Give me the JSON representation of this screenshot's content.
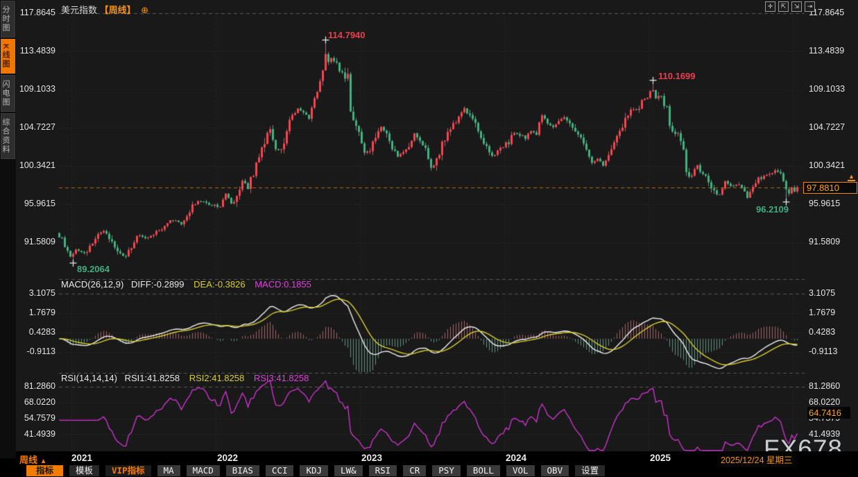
{
  "header": {
    "symbol": "美元指数",
    "period_tag": "【周线】",
    "add_icon": "⊕"
  },
  "sidebar": {
    "items": [
      {
        "label": "分时图",
        "active": false
      },
      {
        "label": "K线图",
        "active": true
      },
      {
        "label": "闪电图",
        "active": false
      },
      {
        "label": "综合资料",
        "active": false
      }
    ]
  },
  "window_controls": [
    {
      "name": "crosshair-tool-icon",
      "glyph": "✛"
    },
    {
      "name": "scale-y-axis-icon",
      "glyph": "⇱"
    },
    {
      "name": "scale-x-axis-icon",
      "glyph": "⇲"
    },
    {
      "name": "shift-right-icon",
      "glyph": "⇥"
    }
  ],
  "main_panel": {
    "y_labels": [
      "117.8645",
      "113.4839",
      "109.1033",
      "104.7227",
      "100.3421",
      "95.9615",
      "91.5809"
    ],
    "last_price": "97.8810",
    "marker_glyph": "▲"
  },
  "annotations": {
    "peak_2022": "114.7940",
    "peak_2025": "110.1699",
    "low_2021": "89.2064",
    "low_2025": "96.2109"
  },
  "macd_panel": {
    "name_label": "MACD(26,12,9)",
    "diff_label": "DIFF:-0.2899",
    "dea_label": "DEA:-0.3826",
    "macd_label": "MACD:0.1855"
  },
  "rsi_panel": {
    "name_label": "RSI(14,14,14)",
    "rsi1_label": "RSI1:41.8258",
    "rsi2_label": "RSI2:41.8258",
    "rsi3_label": "RSI3:41.8258",
    "right_value": "64.7416"
  },
  "x_axis": {
    "period_label": "周线",
    "arrow": "▲",
    "years": [
      "2021",
      "2022",
      "2023",
      "2024",
      "2025"
    ],
    "date_label": "2025/12/24 星期三"
  },
  "toolbar": {
    "items": [
      {
        "label": "指标",
        "style": "active"
      },
      {
        "label": "模板",
        "style": "dark"
      },
      {
        "label": "VIP指标",
        "style": "vip"
      },
      {
        "label": "MA",
        "style": ""
      },
      {
        "label": "MACD",
        "style": ""
      },
      {
        "label": "BIAS",
        "style": ""
      },
      {
        "label": "CCI",
        "style": ""
      },
      {
        "label": "KDJ",
        "style": ""
      },
      {
        "label": "LW&",
        "style": ""
      },
      {
        "label": "RSI",
        "style": ""
      },
      {
        "label": "CR",
        "style": ""
      },
      {
        "label": "PSY",
        "style": ""
      },
      {
        "label": "BOLL",
        "style": ""
      },
      {
        "label": "VOL",
        "style": ""
      },
      {
        "label": "OBV",
        "style": ""
      },
      {
        "label": "设置",
        "style": "dark"
      }
    ]
  },
  "watermark": "FX678",
  "colors": {
    "up_candle": "#ea4b55",
    "down_candle": "#47af81",
    "accent_orange": "#f57c00",
    "axis_highlight": "#ffa21a",
    "dea_yellow": "#d9cd30",
    "magenta": "#e23ee2",
    "grid_dotted": "#3e3e3e",
    "grid_dashed": "#5a5a5a",
    "background": "#191919"
  },
  "chart_data": {
    "type": "candlestick",
    "title": "美元指数 周线 (US Dollar Index, weekly)",
    "weeks": 267,
    "visible_price_range": [
      87.4,
      118.3
    ],
    "y_axis_ticks": [
      117.8645,
      113.4839,
      109.1033,
      104.7227,
      100.3421,
      95.9615,
      91.5809
    ],
    "year_tick_weeks": [
      4.5,
      56.5,
      108.5,
      160.5,
      212.5,
      264.5
    ],
    "year_labels": [
      "2021",
      "2022",
      "2023",
      "2024",
      "2025"
    ],
    "last_close": 97.881,
    "close_anchors": [
      [
        0,
        92.4
      ],
      [
        2,
        91.2
      ],
      [
        4,
        90.0
      ],
      [
        6,
        90.6
      ],
      [
        9,
        90.3
      ],
      [
        13,
        91.9
      ],
      [
        16,
        93.0
      ],
      [
        18,
        91.9
      ],
      [
        22,
        90.1
      ],
      [
        24,
        89.9
      ],
      [
        26,
        91.2
      ],
      [
        28,
        92.3
      ],
      [
        31,
        92.1
      ],
      [
        35,
        92.7
      ],
      [
        39,
        93.9
      ],
      [
        41,
        94.1
      ],
      [
        44,
        93.7
      ],
      [
        46,
        94.3
      ],
      [
        48,
        95.6
      ],
      [
        50,
        96.3
      ],
      [
        52,
        96.1
      ],
      [
        54,
        95.9
      ],
      [
        56,
        95.8
      ],
      [
        58,
        95.7
      ],
      [
        60,
        97.2
      ],
      [
        62,
        95.9
      ],
      [
        64,
        96.7
      ],
      [
        66,
        98.5
      ],
      [
        68,
        97.9
      ],
      [
        70,
        99.6
      ],
      [
        72,
        100.9
      ],
      [
        74,
        103.2
      ],
      [
        76,
        104.6
      ],
      [
        78,
        101.9
      ],
      [
        80,
        102.2
      ],
      [
        82,
        104.5
      ],
      [
        84,
        105.9
      ],
      [
        86,
        107.0
      ],
      [
        88,
        106.6
      ],
      [
        90,
        105.8
      ],
      [
        92,
        107.6
      ],
      [
        94,
        109.6
      ],
      [
        95,
        110.9
      ],
      [
        96,
        113.1
      ],
      [
        97,
        112.2
      ],
      [
        98,
        112.9
      ],
      [
        100,
        111.9
      ],
      [
        102,
        111.0
      ],
      [
        104,
        110.7
      ],
      [
        105,
        106.4
      ],
      [
        106,
        105.9
      ],
      [
        107,
        104.9
      ],
      [
        108,
        103.9
      ],
      [
        110,
        102.2
      ],
      [
        112,
        101.9
      ],
      [
        114,
        103.7
      ],
      [
        116,
        104.9
      ],
      [
        118,
        104.0
      ],
      [
        120,
        102.6
      ],
      [
        122,
        101.6
      ],
      [
        124,
        101.8
      ],
      [
        126,
        102.8
      ],
      [
        128,
        104.2
      ],
      [
        130,
        102.9
      ],
      [
        132,
        102.3
      ],
      [
        134,
        100.0
      ],
      [
        136,
        101.2
      ],
      [
        138,
        102.9
      ],
      [
        140,
        104.3
      ],
      [
        142,
        105.2
      ],
      [
        144,
        105.7
      ],
      [
        146,
        106.8
      ],
      [
        148,
        106.2
      ],
      [
        150,
        105.1
      ],
      [
        152,
        103.5
      ],
      [
        154,
        102.7
      ],
      [
        156,
        101.4
      ],
      [
        158,
        102.0
      ],
      [
        160,
        102.5
      ],
      [
        162,
        103.1
      ],
      [
        164,
        104.2
      ],
      [
        166,
        104.0
      ],
      [
        168,
        103.5
      ],
      [
        170,
        104.5
      ],
      [
        172,
        104.2
      ],
      [
        174,
        106.1
      ],
      [
        176,
        105.2
      ],
      [
        178,
        104.8
      ],
      [
        180,
        105.5
      ],
      [
        182,
        105.9
      ],
      [
        184,
        105.0
      ],
      [
        186,
        104.4
      ],
      [
        188,
        103.3
      ],
      [
        190,
        101.8
      ],
      [
        192,
        100.8
      ],
      [
        194,
        101.3
      ],
      [
        196,
        100.5
      ],
      [
        198,
        102.0
      ],
      [
        200,
        103.3
      ],
      [
        202,
        104.3
      ],
      [
        204,
        105.6
      ],
      [
        206,
        107.0
      ],
      [
        208,
        106.6
      ],
      [
        210,
        107.7
      ],
      [
        212,
        108.4
      ],
      [
        214,
        109.2
      ],
      [
        215,
        108.0
      ],
      [
        217,
        108.1
      ],
      [
        219,
        106.7
      ],
      [
        221,
        103.9
      ],
      [
        223,
        104.2
      ],
      [
        225,
        102.5
      ],
      [
        226,
        99.6
      ],
      [
        228,
        99.3
      ],
      [
        230,
        100.4
      ],
      [
        232,
        99.2
      ],
      [
        234,
        98.7
      ],
      [
        236,
        97.3
      ],
      [
        238,
        96.9
      ],
      [
        240,
        98.6
      ],
      [
        242,
        97.9
      ],
      [
        244,
        98.3
      ],
      [
        246,
        97.7
      ],
      [
        248,
        96.8
      ],
      [
        250,
        98.1
      ],
      [
        252,
        98.9
      ],
      [
        254,
        99.2
      ],
      [
        256,
        99.4
      ],
      [
        258,
        99.9
      ],
      [
        260,
        99.6
      ],
      [
        261,
        98.9
      ],
      [
        262,
        97.5
      ],
      [
        263,
        97.3
      ],
      [
        264,
        97.9
      ],
      [
        265,
        97.6
      ],
      [
        266,
        97.881
      ]
    ],
    "key_points": [
      {
        "week": 5,
        "type": "low",
        "value": 89.2064
      },
      {
        "week": 96,
        "type": "high",
        "value": 114.794
      },
      {
        "week": 214,
        "type": "high",
        "value": 110.1699
      },
      {
        "week": 262,
        "type": "low",
        "value": 96.2109
      }
    ],
    "indicators": {
      "macd": {
        "params": [
          26,
          12,
          9
        ],
        "diff": -0.2899,
        "dea": -0.3826,
        "macd": 0.1855,
        "axis_labels": [
          "3.1075",
          "1.7679",
          "0.4283",
          "-0.9113"
        ]
      },
      "rsi": {
        "params": [
          14,
          14,
          14
        ],
        "rsi1": 41.8258,
        "rsi2": 41.8258,
        "rsi3": 41.8258,
        "latest_axis_value": 64.7416,
        "axis_labels": [
          "81.2860",
          "68.0220",
          "54.7579",
          "41.4939"
        ]
      }
    }
  }
}
